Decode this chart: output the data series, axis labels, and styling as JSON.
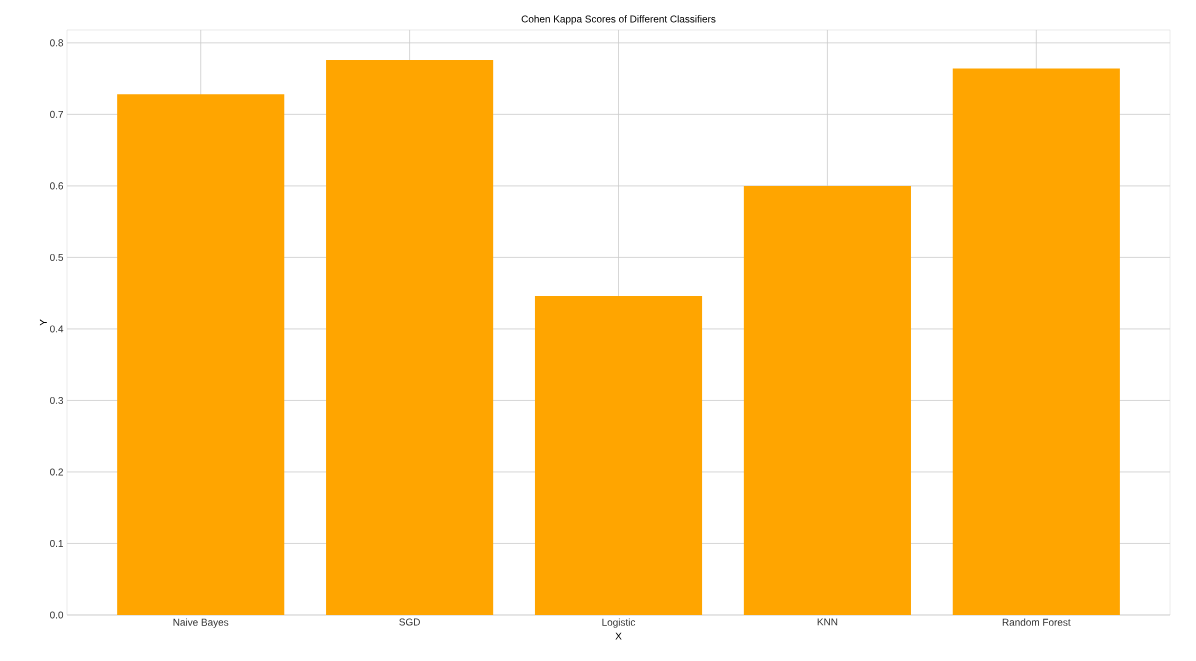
{
  "chart_data": {
    "type": "bar",
    "title": "Cohen Kappa Scores of Different Classifiers",
    "xlabel": "X",
    "ylabel": "Y",
    "categories": [
      "Naive Bayes",
      "SGD",
      "Logistic",
      "KNN",
      "Random Forest"
    ],
    "values": [
      0.728,
      0.776,
      0.446,
      0.6,
      0.764
    ],
    "color": "#ffa500",
    "ylim": [
      0,
      0.818
    ],
    "yticks": [
      {
        "value": 0,
        "label": "0.0"
      },
      0.1,
      0.2,
      0.3,
      0.4,
      0.5,
      0.6,
      0.7,
      0.8
    ],
    "grid": true
  }
}
